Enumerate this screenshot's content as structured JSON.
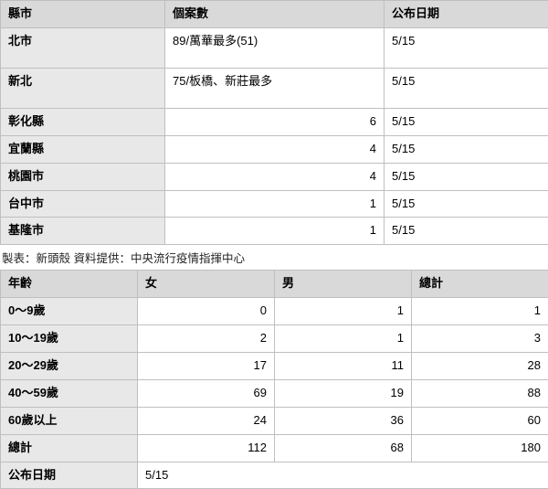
{
  "table1": {
    "headers": [
      "縣市",
      "個案數",
      "公布日期"
    ],
    "colWidths": [
      "180px",
      "240px",
      "180px"
    ],
    "rows": [
      {
        "city": "北市",
        "cases": "89/萬華最多(51)",
        "date": "5/15",
        "casesAlign": "txt",
        "tall": true
      },
      {
        "city": "新北",
        "cases": "75/板橋、新莊最多",
        "date": "5/15",
        "casesAlign": "txt",
        "tall": true
      },
      {
        "city": "彰化縣",
        "cases": "6",
        "date": "5/15",
        "casesAlign": "num"
      },
      {
        "city": "宜蘭縣",
        "cases": "4",
        "date": "5/15",
        "casesAlign": "num"
      },
      {
        "city": "桃園市",
        "cases": "4",
        "date": "5/15",
        "casesAlign": "num"
      },
      {
        "city": "台中市",
        "cases": "1",
        "date": "5/15",
        "casesAlign": "num"
      },
      {
        "city": "基隆市",
        "cases": "1",
        "date": "5/15",
        "casesAlign": "num"
      }
    ]
  },
  "caption": "製表：新頭殼 資料提供：中央流行疫情指揮中心",
  "table2": {
    "headers": [
      "年齡",
      "女",
      "男",
      "總計"
    ],
    "colWidths": [
      "150px",
      "150px",
      "150px",
      "150px"
    ],
    "rows": [
      {
        "age": "0～9歲",
        "f": "0",
        "m": "1",
        "t": "1"
      },
      {
        "age": "10～19歲",
        "f": "2",
        "m": "1",
        "t": "3"
      },
      {
        "age": "20～29歲",
        "f": "17",
        "m": "11",
        "t": "28"
      },
      {
        "age": "40～59歲",
        "f": "69",
        "m": "19",
        "t": "88"
      },
      {
        "age": "60歲以上",
        "f": "24",
        "m": "36",
        "t": "60"
      },
      {
        "age": "總計",
        "f": "112",
        "m": "68",
        "t": "180"
      }
    ],
    "footer": {
      "label": "公布日期",
      "value": "5/15"
    }
  }
}
